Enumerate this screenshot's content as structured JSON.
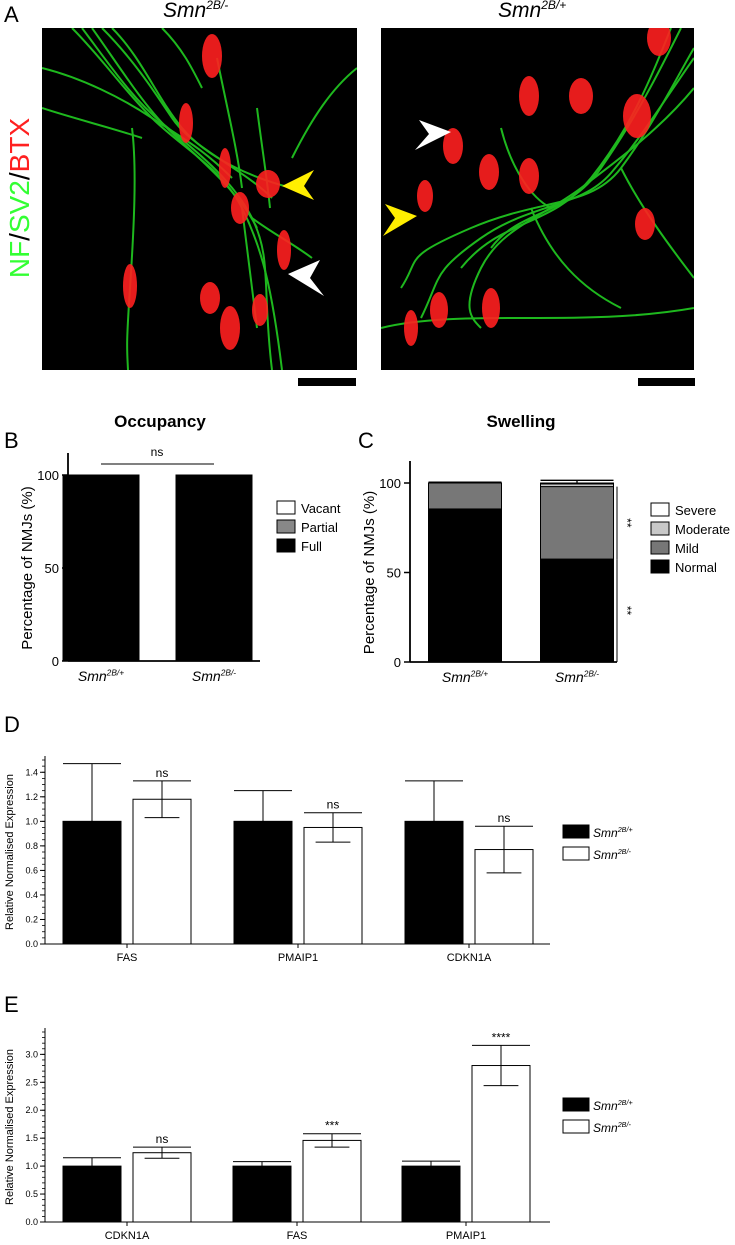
{
  "panel_letters": {
    "a": "A",
    "b": "B",
    "c": "C",
    "d": "D",
    "e": "E"
  },
  "panel_a": {
    "left_genotype_base": "Smn",
    "left_genotype_sup": "2B/-",
    "right_genotype_base": "Smn",
    "right_genotype_sup": "2B/+",
    "stain_nf": "NF",
    "stain_sep1": "/",
    "stain_sv2": "SV2",
    "stain_sep2": "/",
    "stain_btx": "BTX",
    "colors": {
      "green": "#33ff33",
      "red": "#ff2020",
      "arrow_yellow": "#ffee00",
      "arrow_white": "#ffffff"
    }
  },
  "chart_data": [
    {
      "panel": "B",
      "type": "bar",
      "title": "Occupancy",
      "ylabel": "Percentage of NMJs (%)",
      "ylim": [
        0,
        100
      ],
      "yticks": [
        "0",
        "50",
        "100"
      ],
      "categories": [
        {
          "base": "Smn",
          "sup": "2B/+"
        },
        {
          "base": "Smn",
          "sup": "2B/-"
        }
      ],
      "series": [
        {
          "name": "Full",
          "color": "#000000",
          "values": [
            100,
            100
          ]
        },
        {
          "name": "Partial",
          "color": "#888888",
          "values": [
            0,
            0
          ]
        },
        {
          "name": "Vacant",
          "color": "#ffffff",
          "values": [
            0,
            0
          ]
        }
      ],
      "legend_order": [
        "Vacant",
        "Partial",
        "Full"
      ],
      "legend_position": "right",
      "annotation": "ns"
    },
    {
      "panel": "C",
      "type": "bar",
      "title": "Swelling",
      "ylabel": "Percentage of NMJs (%)",
      "ylim": [
        0,
        100
      ],
      "yticks": [
        "0",
        "50",
        "100"
      ],
      "categories": [
        {
          "base": "Smn",
          "sup": "2B/+"
        },
        {
          "base": "Smn",
          "sup": "2B/-"
        }
      ],
      "series": [
        {
          "name": "Normal",
          "color": "#000000",
          "values": [
            85.5,
            57.5
          ],
          "errors": [
            0.8,
            2.8
          ]
        },
        {
          "name": "Mild",
          "color": "#777777",
          "values": [
            14.5,
            40.5
          ]
        },
        {
          "name": "Moderate",
          "color": "#c8c8c8",
          "values": [
            0,
            1.5
          ]
        },
        {
          "name": "Severe",
          "color": "#ffffff",
          "values": [
            0,
            0.5
          ]
        }
      ],
      "top_errors": [
        0.5,
        1.5
      ],
      "legend_order": [
        "Severe",
        "Moderate",
        "Mild",
        "Normal"
      ],
      "legend_position": "right",
      "annotations": [
        "**",
        "**"
      ]
    },
    {
      "panel": "D",
      "type": "bar",
      "ylabel": "Relative Normalised Expression",
      "ylim": [
        0,
        1.5
      ],
      "yticks": [
        "0.0",
        "0.2",
        "0.4",
        "0.6",
        "0.8",
        "1.0",
        "1.2",
        "1.4"
      ],
      "categories": [
        "FAS",
        "PMAIP1",
        "CDKN1A"
      ],
      "series": [
        {
          "name_base": "Smn",
          "name_sup": "2B/+",
          "color": "#000000",
          "values": [
            1.0,
            1.0,
            1.0
          ],
          "errors": [
            0.47,
            0.25,
            0.33
          ]
        },
        {
          "name_base": "Smn",
          "name_sup": "2B/-",
          "color": "#ffffff",
          "values": [
            1.18,
            0.95,
            0.77
          ],
          "errors": [
            0.15,
            0.12,
            0.19
          ]
        }
      ],
      "annotations": [
        "ns",
        "ns",
        "ns"
      ],
      "legend_position": "right"
    },
    {
      "panel": "E",
      "type": "bar",
      "ylabel": "Relative Normalised Expression",
      "ylim": [
        0,
        3.4
      ],
      "yticks": [
        "0.0",
        "0.5",
        "1.0",
        "1.5",
        "2.0",
        "2.5",
        "3.0"
      ],
      "categories": [
        "CDKN1A",
        "FAS",
        "PMAIP1"
      ],
      "series": [
        {
          "name_base": "Smn",
          "name_sup": "2B/+",
          "color": "#000000",
          "values": [
            1.0,
            1.0,
            1.0
          ],
          "errors": [
            0.15,
            0.08,
            0.09
          ]
        },
        {
          "name_base": "Smn",
          "name_sup": "2B/-",
          "color": "#ffffff",
          "values": [
            1.24,
            1.46,
            2.8
          ],
          "errors": [
            0.1,
            0.12,
            0.36
          ]
        }
      ],
      "annotations": [
        "ns",
        "***",
        "****"
      ],
      "legend_position": "right"
    }
  ]
}
